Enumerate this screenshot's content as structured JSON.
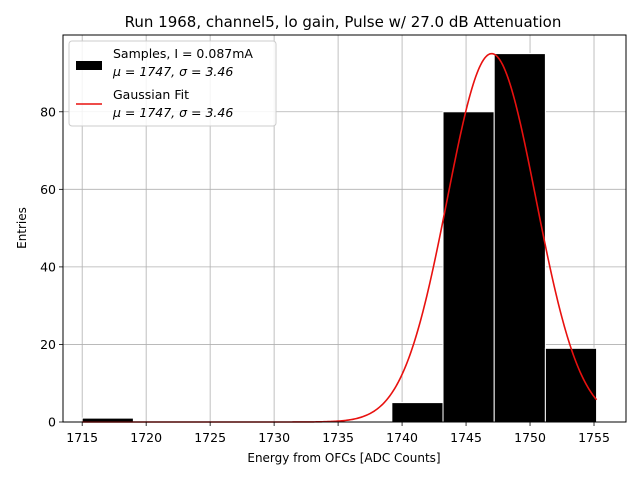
{
  "chart_data": {
    "type": "bar",
    "title": "Run 1968, channel5, lo gain, Pulse w/ 27.0 dB Attenuation",
    "xlabel": "Energy from OFCs [ADC Counts]",
    "ylabel": "Entries",
    "xlim": [
      1713.5,
      1757.5
    ],
    "ylim": [
      0,
      99.8
    ],
    "grid": true,
    "legend_position": "top-left",
    "x_ticks": [
      1715,
      1720,
      1725,
      1730,
      1735,
      1740,
      1745,
      1750,
      1755
    ],
    "y_ticks": [
      0,
      20,
      40,
      60,
      80
    ],
    "histogram": {
      "name_line1": "Samples, I = 0.087mA",
      "name_line2": "μ = 1747, σ = 3.46",
      "color": "#000000",
      "edge_color": "#ffffff",
      "bins": [
        {
          "x0": 1715.0,
          "x1": 1719.0,
          "count": 1
        },
        {
          "x0": 1739.2,
          "x1": 1743.2,
          "count": 5
        },
        {
          "x0": 1743.2,
          "x1": 1747.2,
          "count": 80
        },
        {
          "x0": 1747.2,
          "x1": 1751.2,
          "count": 95
        },
        {
          "x0": 1751.2,
          "x1": 1755.2,
          "count": 19
        }
      ]
    },
    "fit": {
      "name_line1": "Gaussian Fit",
      "name_line2": "μ = 1747, σ = 3.46",
      "color": "#e8110f",
      "mu": 1747,
      "sigma": 3.46,
      "amplitude": 95,
      "x_range": [
        1715,
        1755.2
      ]
    }
  }
}
